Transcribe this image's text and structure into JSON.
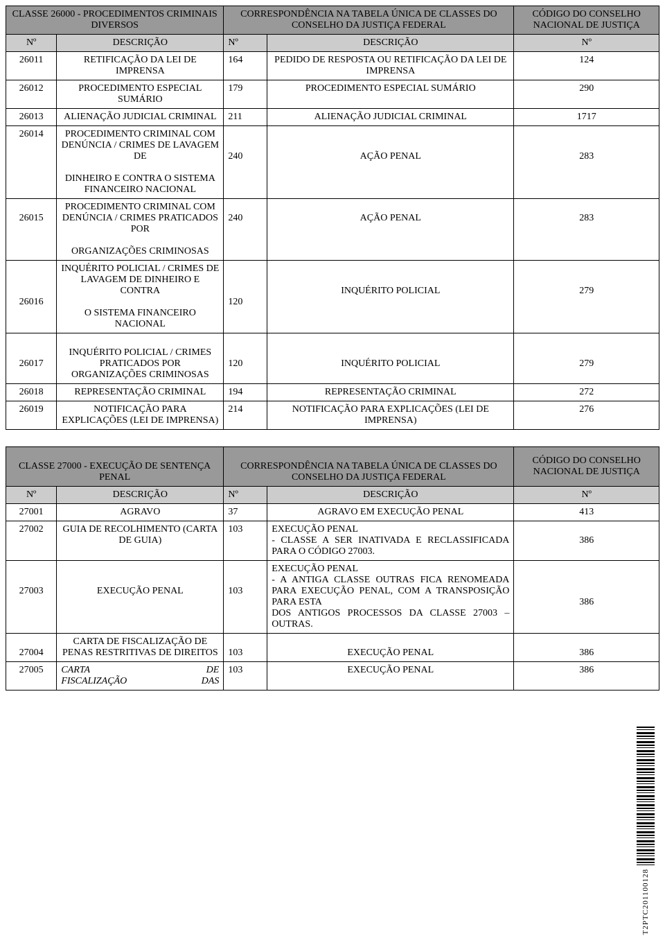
{
  "table1": {
    "header": {
      "left": "CLASSE 26000 - PROCEDIMENTOS CRIMINAIS DIVERSOS",
      "middle": "CORRESPONDÊNCIA NA TABELA ÚNICA DE CLASSES DO CONSELHO DA JUSTIÇA FEDERAL",
      "right": "CÓDIGO DO CONSELHO NACIONAL DE JUSTIÇA",
      "c1": "Nº",
      "c2": "DESCRIÇÃO",
      "c3": "Nº",
      "c4": "DESCRIÇÃO",
      "c5": "Nº"
    },
    "rows": [
      {
        "n1": "26011",
        "d1": "RETIFICAÇÃO DA LEI DE IMPRENSA",
        "n2": "164",
        "d2": "PEDIDO DE RESPOSTA OU RETIFICAÇÃO DA LEI DE IMPRENSA",
        "n3": "124"
      },
      {
        "n1": "26012",
        "d1": "PROCEDIMENTO ESPECIAL SUMÁRIO",
        "n2": "179",
        "d2": "PROCEDIMENTO ESPECIAL SUMÁRIO",
        "n3": "290"
      },
      {
        "n1": "26013",
        "d1": "ALIENAÇÃO JUDICIAL CRIMINAL",
        "n2": "211",
        "d2": "ALIENAÇÃO JUDICIAL CRIMINAL",
        "n3": "1717"
      },
      {
        "n1": "26014",
        "d1a": "PROCEDIMENTO CRIMINAL COM DENÚNCIA / CRIMES DE LAVAGEM DE",
        "d1b": "DINHEIRO E CONTRA O SISTEMA FINANCEIRO NACIONAL",
        "n2": "240",
        "d2": "AÇÃO PENAL",
        "n3": "283"
      },
      {
        "n1": "26015",
        "d1a": "PROCEDIMENTO CRIMINAL COM DENÚNCIA /  CRIMES PRATICADOS POR",
        "d1b": "ORGANIZAÇÕES CRIMINOSAS",
        "n2": "240",
        "d2": "AÇÃO PENAL",
        "n3": "283"
      },
      {
        "n1": "26016",
        "d1a": "INQUÉRITO POLICIAL / CRIMES DE LAVAGEM DE DINHEIRO E CONTRA",
        "d1b": "O SISTEMA FINANCEIRO NACIONAL",
        "n2": "120",
        "d2": "INQUÉRITO POLICIAL",
        "n3": "279"
      },
      {
        "n1": "26017",
        "d1": "INQUÉRITO POLICIAL / CRIMES PRATICADOS POR ORGANIZAÇÕES CRIMINOSAS",
        "n2": "120",
        "d2": "INQUÉRITO POLICIAL",
        "n3": "279"
      },
      {
        "n1": "26018",
        "d1": "REPRESENTAÇÃO CRIMINAL",
        "n2": "194",
        "d2": "REPRESENTAÇÃO CRIMINAL",
        "n3": "272"
      },
      {
        "n1": "26019",
        "d1": "NOTIFICAÇÃO PARA EXPLICAÇÕES (LEI DE IMPRENSA)",
        "n2": "214",
        "d2": "NOTIFICAÇÃO PARA EXPLICAÇÕES (LEI DE IMPRENSA)",
        "n3": "276"
      }
    ]
  },
  "table2": {
    "header": {
      "left": "CLASSE 27000 - EXECUÇÃO DE SENTENÇA PENAL",
      "middle": "CORRESPONDÊNCIA NA TABELA ÚNICA DE CLASSES DO CONSELHO DA JUSTIÇA FEDERAL",
      "right": "CÓDIGO DO CONSELHO NACIONAL DE JUSTIÇA",
      "c1": "Nº",
      "c2": "DESCRIÇÃO",
      "c3": "Nº",
      "c4": "DESCRIÇÃO",
      "c5": "Nº"
    },
    "rows": [
      {
        "n1": "27001",
        "d1": "AGRAVO",
        "n2": "37",
        "d2": "AGRAVO EM EXECUÇÃO PENAL",
        "n3": "413"
      },
      {
        "n1": "27002",
        "d1": "GUIA DE RECOLHIMENTO (CARTA DE GUIA)",
        "n2": "103",
        "d2": "EXECUÇÃO PENAL\n- CLASSE A SER INATIVADA E RECLASSIFICADA PARA O CÓDIGO 27003.",
        "n3": "386",
        "justify": true
      },
      {
        "n1": "27003",
        "d1": "EXECUÇÃO PENAL",
        "n2": "103",
        "d2": "EXECUÇÃO PENAL\n- A ANTIGA CLASSE OUTRAS FICA RENOMEADA PARA EXECUÇÃO PENAL, COM A TRANSPOSIÇÃO PARA ESTA\nDOS ANTIGOS PROCESSOS DA CLASSE 27003 – OUTRAS.",
        "n3": "386",
        "justify": true
      },
      {
        "n1": "27004",
        "d1": "CARTA DE FISCALIZAÇÃO DE PENAS RESTRITIVAS DE DIREITOS",
        "n2": "103",
        "d2": "EXECUÇÃO PENAL",
        "n3": "386"
      },
      {
        "n1": "27005",
        "d1a": "CARTA",
        "d1b": "DE",
        "d1c": "FISCALIZAÇÃO",
        "d1d": "DAS",
        "n2": "103",
        "d2": "EXECUÇÃO PENAL",
        "n3": "386",
        "italic": true
      }
    ]
  },
  "barcode_label": "T2PTC201100128"
}
